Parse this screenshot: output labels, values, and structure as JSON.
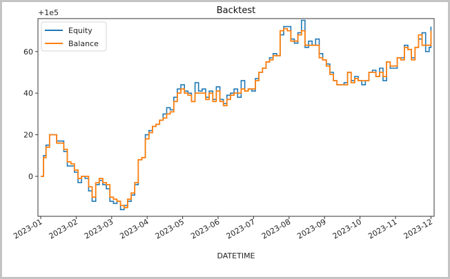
{
  "chart_data": {
    "type": "line",
    "title": "Backtest",
    "xlabel": "DATETIME",
    "ylabel": "",
    "offset_label": "+1e5",
    "ylim": [
      -19,
      76
    ],
    "yticks": [
      0,
      20,
      40,
      60
    ],
    "ytick_labels": [
      "0",
      "20",
      "40",
      "60"
    ],
    "xticks": [
      "2023-01",
      "2023-02",
      "2023-03",
      "2023-04",
      "2023-05",
      "2023-06",
      "2023-07",
      "2023-08",
      "2023-09",
      "2023-10",
      "2023-11",
      "2023-12"
    ],
    "grid": false,
    "legend_position": "upper left",
    "step": true,
    "x_months": [
      0,
      0.08,
      0.15,
      0.25,
      0.35,
      0.45,
      0.55,
      0.65,
      0.75,
      0.85,
      0.95,
      1.05,
      1.15,
      1.25,
      1.35,
      1.45,
      1.55,
      1.65,
      1.75,
      1.85,
      1.95,
      2.05,
      2.15,
      2.25,
      2.35,
      2.45,
      2.55,
      2.65,
      2.75,
      2.85,
      2.95,
      3.05,
      3.15,
      3.25,
      3.35,
      3.45,
      3.55,
      3.65,
      3.75,
      3.85,
      3.95,
      4.05,
      4.15,
      4.25,
      4.35,
      4.45,
      4.55,
      4.65,
      4.75,
      4.85,
      4.95,
      5.05,
      5.15,
      5.25,
      5.35,
      5.45,
      5.55,
      5.65,
      5.75,
      5.85,
      5.95,
      6.05,
      6.15,
      6.25,
      6.35,
      6.45,
      6.55,
      6.65,
      6.75,
      6.85,
      6.95,
      7.05,
      7.15,
      7.25,
      7.35,
      7.45,
      7.55,
      7.65,
      7.75,
      7.85,
      7.95,
      8.05,
      8.15,
      8.25,
      8.35,
      8.45,
      8.55,
      8.65,
      8.75,
      8.85,
      8.95,
      9.05,
      9.15,
      9.25,
      9.35,
      9.45,
      9.55,
      9.65,
      9.75,
      9.85,
      9.95,
      10.05,
      10.15,
      10.25,
      10.35,
      10.45,
      10.55,
      10.65,
      10.75,
      10.85,
      10.95,
      11.0
    ],
    "series": [
      {
        "name": "Equity",
        "color": "#1f77b4",
        "values": [
          0,
          10,
          15,
          20,
          20,
          17,
          17,
          12,
          5,
          5,
          2,
          -3,
          0,
          -1,
          -7,
          -12,
          -4,
          -2,
          -4,
          -6,
          -12,
          -13,
          -12,
          -16,
          -14,
          -12,
          -9,
          -4,
          8,
          9,
          20,
          22,
          24,
          25,
          27,
          30,
          33,
          32,
          38,
          42,
          44,
          41,
          40,
          36,
          45,
          41,
          42,
          38,
          41,
          37,
          43,
          37,
          35,
          39,
          40,
          42,
          38,
          46,
          41,
          42,
          41,
          47,
          50,
          52,
          55,
          57,
          59,
          58,
          68,
          72,
          72,
          66,
          64,
          69,
          75,
          62,
          65,
          63,
          66,
          59,
          56,
          54,
          50,
          46,
          44,
          44,
          45,
          50,
          46,
          48,
          46,
          44,
          46,
          50,
          51,
          48,
          52,
          46,
          55,
          52,
          52,
          57,
          57,
          63,
          61,
          57,
          62,
          66,
          69,
          60,
          62,
          72
        ]
      },
      {
        "name": "Balance",
        "color": "#ff7f0e",
        "values": [
          0,
          9,
          14,
          20,
          20,
          16,
          16,
          13,
          7,
          6,
          3,
          -1,
          0,
          0,
          -5,
          -10,
          -3,
          -1,
          -3,
          -4,
          -10,
          -11,
          -12,
          -14,
          -15,
          -11,
          -8,
          -3,
          8,
          9,
          18,
          21,
          24,
          25,
          27,
          28,
          30,
          31,
          36,
          40,
          42,
          40,
          39,
          36,
          40,
          40,
          40,
          37,
          40,
          36,
          41,
          36,
          34,
          37,
          39,
          40,
          40,
          42,
          41,
          42,
          42,
          46,
          50,
          52,
          55,
          56,
          58,
          58,
          70,
          71,
          70,
          65,
          65,
          68,
          70,
          63,
          63,
          63,
          63,
          57,
          56,
          53,
          49,
          46,
          44,
          44,
          44,
          50,
          45,
          47,
          46,
          46,
          46,
          50,
          50,
          48,
          50,
          48,
          55,
          53,
          53,
          57,
          56,
          62,
          61,
          56,
          62,
          68,
          63,
          63,
          63,
          70
        ]
      }
    ]
  },
  "legend": {
    "items": [
      {
        "label": "Equity",
        "color": "#1f77b4"
      },
      {
        "label": "Balance",
        "color": "#ff7f0e"
      }
    ]
  }
}
